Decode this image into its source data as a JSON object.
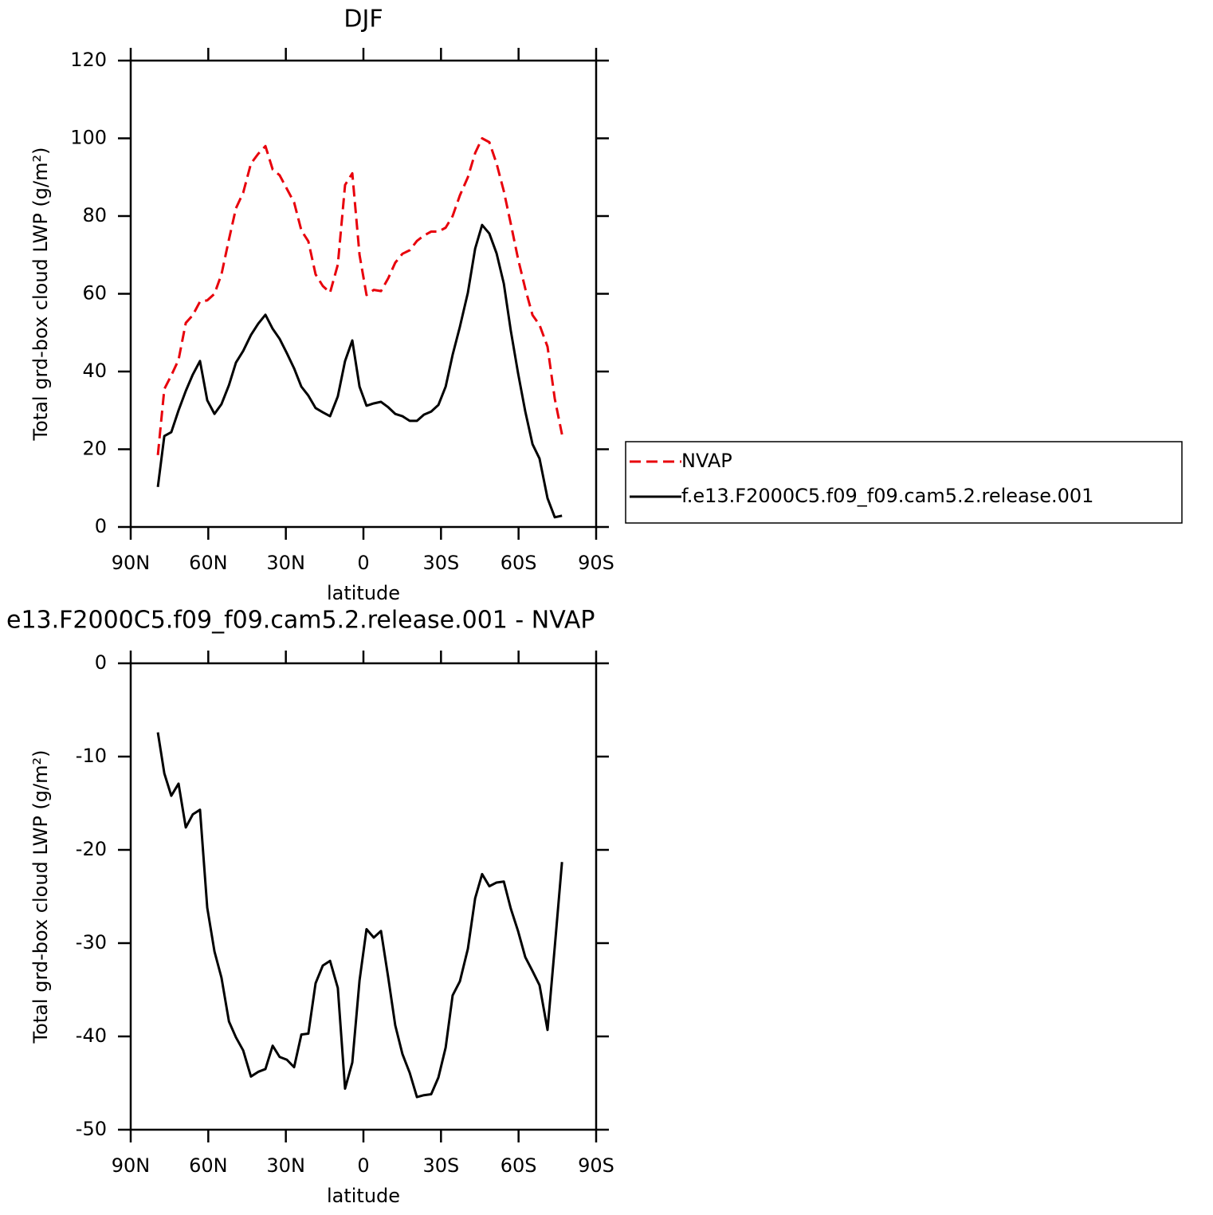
{
  "chart_data": [
    {
      "type": "line",
      "title": "DJF",
      "xlabel": "latitude",
      "ylabel": "Total grd-box cloud LWP (g/m²)",
      "x": [
        79.5,
        77,
        74.3,
        71.5,
        68.7,
        66,
        63.2,
        60.4,
        57.6,
        54.9,
        52,
        49.3,
        46.5,
        43.5,
        40.7,
        37.9,
        35.1,
        32.4,
        29.6,
        26.8,
        24,
        21.3,
        18.5,
        15.7,
        12.9,
        9.9,
        7.1,
        4.3,
        1.5,
        -1.2,
        -4,
        -6.8,
        -9.6,
        -12.3,
        -15.1,
        -17.9,
        -20.7,
        -23.4,
        -26.2,
        -29,
        -31.8,
        -34.5,
        -37.3,
        -40.4,
        -43.2,
        -45.9,
        -48.7,
        -51.5,
        -54.3,
        -57,
        -59.8,
        -62.6,
        -65.4,
        -68.1,
        -71.2,
        -74,
        -76.8
      ],
      "series": [
        {
          "name": "NVAP",
          "color": "#e8000b",
          "line_style": "dashed",
          "values": [
            18.5,
            35.5,
            39,
            43,
            52.5,
            54.5,
            58,
            58.3,
            60,
            65,
            74,
            82,
            86,
            93.5,
            96,
            98,
            92,
            90.5,
            87,
            83.5,
            76.3,
            73.5,
            65,
            62,
            60.3,
            67.5,
            88,
            91,
            70,
            59.7,
            61,
            60.7,
            64,
            68,
            70.3,
            71.2,
            73.6,
            75,
            76,
            76,
            77,
            80,
            85.3,
            90,
            96.2,
            100,
            99,
            93.5,
            86.4,
            78,
            69,
            61.3,
            54.5,
            52,
            46.4,
            33,
            23.8
          ]
        },
        {
          "name": "f.e13.F2000C5.f09_f09.cam5.2.release.001",
          "color": "#000000",
          "line_style": "solid",
          "values": [
            10.3,
            23.4,
            24.4,
            30,
            35,
            39.2,
            42.7,
            32.6,
            29.1,
            31.6,
            36.5,
            42.3,
            45.3,
            49.4,
            52.3,
            54.6,
            51,
            48.4,
            44.7,
            40.8,
            36.1,
            33.8,
            30.6,
            29.5,
            28.5,
            33.6,
            42.7,
            48,
            36.1,
            31.2,
            31.8,
            32.2,
            30.8,
            29.1,
            28.5,
            27.3,
            27.3,
            28.9,
            29.7,
            31.4,
            36.1,
            44.3,
            51.5,
            60.3,
            71.6,
            77.7,
            75.5,
            70.4,
            62.6,
            50.5,
            39.6,
            29.7,
            21.3,
            17.6,
            7.4,
            2.5,
            2.9
          ]
        }
      ],
      "legend": "outside-right",
      "xlim": [
        90,
        -90
      ],
      "xticks": [
        {
          "value": 90,
          "label": "90N"
        },
        {
          "value": 60,
          "label": "60N"
        },
        {
          "value": 30,
          "label": "30N"
        },
        0,
        {
          "value": -30,
          "label": "30S"
        },
        {
          "value": -60,
          "label": "60S"
        },
        {
          "value": -90,
          "label": "90S"
        }
      ],
      "ylim": [
        0,
        120
      ],
      "yticks": [
        0,
        20,
        40,
        60,
        80,
        100,
        120
      ]
    },
    {
      "type": "line",
      "title": "e13.F2000C5.f09_f09.cam5.2.release.001 - NVAP",
      "xlabel": "latitude",
      "ylabel": "Total grd-box cloud LWP (g/m²)",
      "x": [
        79.5,
        77,
        74.3,
        71.5,
        68.7,
        66,
        63.2,
        60.4,
        57.6,
        54.9,
        52,
        49.3,
        46.5,
        43.5,
        40.7,
        37.9,
        35.1,
        32.4,
        29.6,
        26.8,
        24,
        21.3,
        18.5,
        15.7,
        12.9,
        9.9,
        7.1,
        4.3,
        1.5,
        -1.2,
        -4,
        -6.8,
        -9.6,
        -12.3,
        -15.1,
        -17.9,
        -20.7,
        -23.4,
        -26.2,
        -29,
        -31.8,
        -34.5,
        -37.3,
        -40.4,
        -43.2,
        -45.9,
        -48.7,
        -51.5,
        -54.3,
        -57,
        -59.8,
        -62.6,
        -65.4,
        -68.1,
        -71.2,
        -74,
        -76.8
      ],
      "values": [
        -7.4,
        -11.8,
        -14.2,
        -12.9,
        -17.6,
        -16.2,
        -15.7,
        -26.2,
        -30.9,
        -33.7,
        -38.4,
        -40.1,
        -41.5,
        -44.3,
        -43.8,
        -43.5,
        -41,
        -42.2,
        -42.5,
        -43.3,
        -39.8,
        -39.7,
        -34.3,
        -32.4,
        -31.9,
        -34.8,
        -45.6,
        -42.8,
        -34,
        -28.5,
        -29.4,
        -28.7,
        -33.7,
        -38.8,
        -41.9,
        -43.9,
        -46.5,
        -46.3,
        -46.2,
        -44.4,
        -41.2,
        -35.6,
        -34.1,
        -30.6,
        -25.2,
        -22.6,
        -23.9,
        -23.5,
        -23.4,
        -26.3,
        -28.7,
        -31.5,
        -33,
        -34.5,
        -39.3,
        -30.4,
        -21.3
      ],
      "color": "#000000",
      "line_style": "solid",
      "xlim": [
        90,
        -90
      ],
      "xticks": [
        {
          "value": 90,
          "label": "90N"
        },
        {
          "value": 60,
          "label": "60N"
        },
        {
          "value": 30,
          "label": "30N"
        },
        0,
        {
          "value": -30,
          "label": "30S"
        },
        {
          "value": -60,
          "label": "60S"
        },
        {
          "value": -90,
          "label": "90S"
        }
      ],
      "ylim": [
        -50,
        0
      ],
      "yticks": [
        -50,
        -40,
        -30,
        -20,
        -10,
        0
      ]
    }
  ]
}
